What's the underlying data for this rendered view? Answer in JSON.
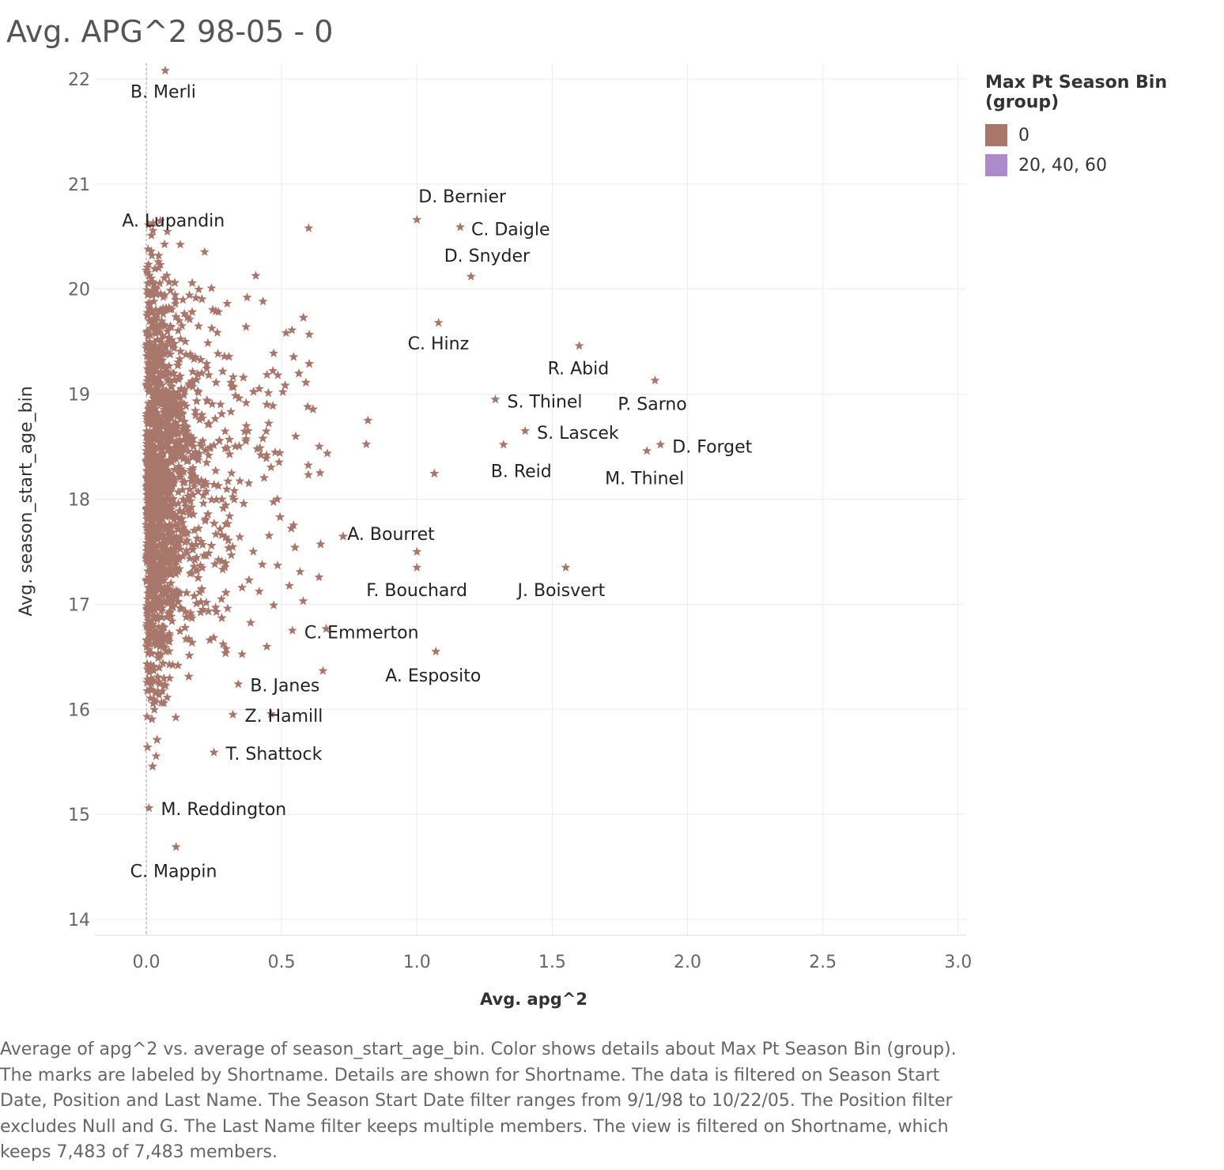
{
  "title": "Avg. APG^2 98-05 - 0",
  "legend": {
    "title": "Max Pt Season Bin (group)",
    "items": [
      {
        "label": "0",
        "color": "#a8766b"
      },
      {
        "label": "20, 40, 60",
        "color": "#ad8ac9"
      }
    ]
  },
  "caption": "Average of apg^2 vs. average of season_start_age_bin.  Color shows details about Max Pt Season Bin (group).  The marks are labeled by Shortname.  Details are shown for Shortname. The data is filtered on Season Start Date, Position and Last Name. The Season Start Date filter ranges from 9/1/98 to 10/22/05. The Position filter excludes Null and G. The Last Name filter keeps multiple members. The view is filtered on Shortname, which keeps 7,483 of 7,483 members.",
  "chart_data": {
    "type": "scatter",
    "marker": "star",
    "color": "#a8766b",
    "xlabel": "Avg. apg^2",
    "ylabel": "Avg. season_start_age_bin",
    "xlim": [
      -0.19,
      3.03
    ],
    "ylim": [
      13.85,
      22.15
    ],
    "x_ticks": [
      "0.0",
      "0.5",
      "1.0",
      "1.5",
      "2.0",
      "2.5",
      "3.0"
    ],
    "y_ticks": [
      "14",
      "15",
      "16",
      "17",
      "18",
      "19",
      "20",
      "21",
      "22"
    ],
    "grid": true,
    "zero_line": true,
    "legend_position": "right",
    "labeled_points": [
      {
        "name": "B. Merli",
        "x": 0.07,
        "y": 22.08
      },
      {
        "name": "A. Lupandin",
        "x": 0.6,
        "y": 20.58
      },
      {
        "name": "D. Bernier",
        "x": 1.0,
        "y": 20.66
      },
      {
        "name": "C. Daigle",
        "x": 1.16,
        "y": 20.59
      },
      {
        "name": "D. Snyder",
        "x": 1.2,
        "y": 20.12
      },
      {
        "name": "C. Hinz",
        "x": 1.08,
        "y": 19.68
      },
      {
        "name": "R. Abid",
        "x": 1.6,
        "y": 19.46
      },
      {
        "name": "S. Thinel",
        "x": 1.29,
        "y": 18.95
      },
      {
        "name": "P. Sarno",
        "x": 1.88,
        "y": 19.13
      },
      {
        "name": "S. Lascek",
        "x": 1.4,
        "y": 18.65
      },
      {
        "name": "D. Forget",
        "x": 1.9,
        "y": 18.52
      },
      {
        "name": "B. Reid",
        "x": 1.32,
        "y": 18.52
      },
      {
        "name": "M. Thinel",
        "x": 1.85,
        "y": 18.46
      },
      {
        "name": "A. Bourret",
        "x": 1.0,
        "y": 17.5
      },
      {
        "name": "F. Bouchard",
        "x": 1.0,
        "y": 17.35
      },
      {
        "name": "J. Boisvert",
        "x": 1.55,
        "y": 17.35
      },
      {
        "name": "C. Emmerton",
        "x": 0.54,
        "y": 16.75
      },
      {
        "name": "A. Esposito",
        "x": 1.07,
        "y": 16.55
      },
      {
        "name": "B. Janes",
        "x": 0.34,
        "y": 16.24
      },
      {
        "name": "Z. Hamill",
        "x": 0.32,
        "y": 15.95
      },
      {
        "name": "T. Shattock",
        "x": 0.25,
        "y": 15.59
      },
      {
        "name": "M. Reddington",
        "x": 0.01,
        "y": 15.06
      },
      {
        "name": "C. Mappin",
        "x": 0.11,
        "y": 14.69
      }
    ],
    "point_count": "7,483"
  }
}
